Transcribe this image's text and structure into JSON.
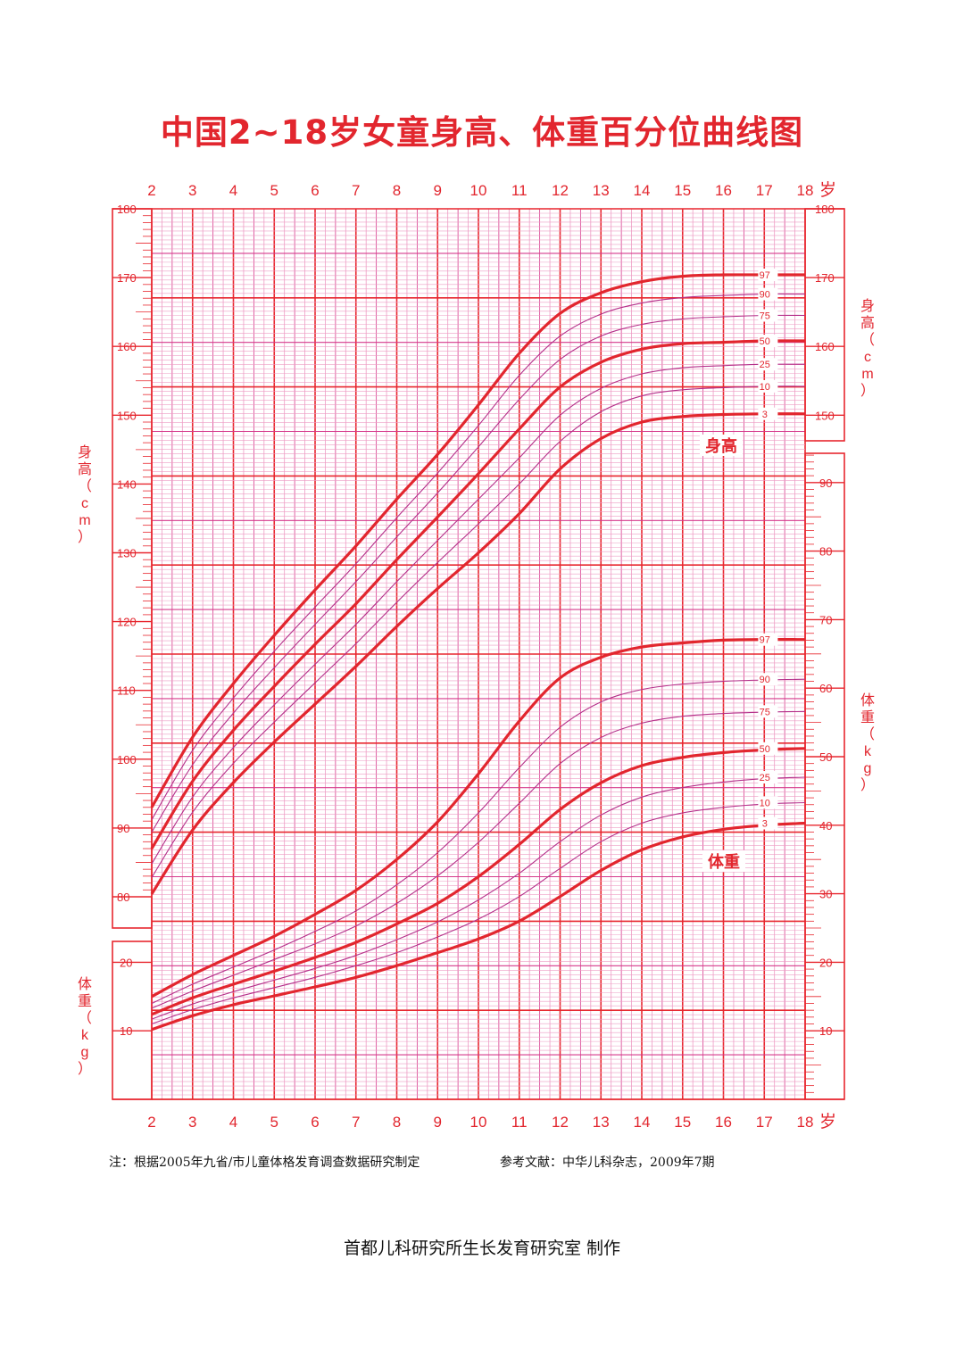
{
  "title": "中国2~18岁女童身高、体重百分位曲线图",
  "note_left": "注：根据2005年九省/市儿童体格发育调查数据研究制定",
  "note_right": "参考文献：中华儿科杂志，2009年7期",
  "footer": "首都儿科研究所生长发育研究室 制作",
  "colors": {
    "primary": "#e2262e",
    "grid": "#d63a8c",
    "grid_minor": "#ee9cc4",
    "frame": "#e8272f"
  },
  "chart_data": {
    "type": "line",
    "x_axis": {
      "unit": "岁",
      "range": [
        2,
        18
      ],
      "ticks": [
        "2",
        "3",
        "4",
        "5",
        "6",
        "7",
        "8",
        "9",
        "10",
        "11",
        "12",
        "13",
        "14",
        "15",
        "16",
        "17",
        "18"
      ]
    },
    "height_axis": {
      "label": "身高（cm）",
      "range": [
        80,
        180
      ],
      "left_ticks": [
        "80",
        "90",
        "100",
        "110",
        "120",
        "130",
        "140",
        "150",
        "160",
        "170",
        "180"
      ],
      "right_ticks": [
        "150",
        "160",
        "170",
        "180"
      ]
    },
    "weight_axis": {
      "label": "体重（kg）",
      "range": [
        0,
        95
      ],
      "left_ticks": [
        "10",
        "20"
      ],
      "right_ticks": [
        "10",
        "20",
        "30",
        "40",
        "50",
        "60",
        "70",
        "80",
        "90"
      ]
    },
    "x": [
      2,
      3,
      4,
      5,
      6,
      7,
      8,
      9,
      10,
      11,
      12,
      13,
      14,
      15,
      16,
      17,
      18
    ],
    "height_label": "身高",
    "weight_label": "体重",
    "height_series": [
      {
        "name": "97",
        "values": [
          93.0,
          103.2,
          111.0,
          118.0,
          124.6,
          131.0,
          137.8,
          144.3,
          151.5,
          159.0,
          164.8,
          167.8,
          169.4,
          170.2,
          170.4,
          170.4,
          170.4
        ]
      },
      {
        "name": "90",
        "values": [
          91.2,
          101.3,
          108.9,
          115.7,
          122.1,
          128.4,
          135.1,
          141.6,
          148.5,
          155.8,
          161.5,
          164.7,
          166.3,
          167.1,
          167.4,
          167.6,
          167.6
        ]
      },
      {
        "name": "75",
        "values": [
          89.4,
          99.2,
          106.7,
          113.3,
          119.6,
          125.8,
          132.3,
          138.7,
          145.4,
          152.3,
          158.1,
          161.5,
          163.2,
          164.0,
          164.3,
          164.5,
          164.5
        ]
      },
      {
        "name": "50",
        "values": [
          87.0,
          96.8,
          104.2,
          110.6,
          116.7,
          122.6,
          129.0,
          135.2,
          141.5,
          148.0,
          154.1,
          157.7,
          159.6,
          160.4,
          160.6,
          160.8,
          160.8
        ]
      },
      {
        "name": "25",
        "values": [
          84.8,
          94.5,
          101.7,
          107.9,
          113.8,
          119.6,
          125.8,
          131.8,
          137.8,
          143.8,
          150.0,
          153.9,
          156.0,
          156.9,
          157.2,
          157.4,
          157.4
        ]
      },
      {
        "name": "10",
        "values": [
          82.8,
          92.3,
          99.4,
          105.4,
          111.1,
          116.8,
          122.8,
          128.6,
          134.2,
          140.0,
          146.2,
          150.5,
          152.8,
          153.7,
          154.0,
          154.2,
          154.2
        ]
      },
      {
        "name": "3",
        "values": [
          80.4,
          89.7,
          96.6,
          102.5,
          108.0,
          113.5,
          119.3,
          124.8,
          130.0,
          135.7,
          142.2,
          146.6,
          149.0,
          149.8,
          150.1,
          150.2,
          150.2
        ]
      }
    ],
    "weight_series": [
      {
        "name": "97",
        "values": [
          15.0,
          18.2,
          21.0,
          23.8,
          27.0,
          30.5,
          35.0,
          40.5,
          47.5,
          55.2,
          61.5,
          64.5,
          66.0,
          66.6,
          67.0,
          67.1,
          67.1
        ]
      },
      {
        "name": "90",
        "values": [
          14.0,
          16.8,
          19.3,
          21.8,
          24.5,
          27.5,
          31.3,
          36.0,
          41.8,
          48.4,
          54.3,
          58.0,
          59.8,
          60.6,
          61.0,
          61.2,
          61.3
        ]
      },
      {
        "name": "75",
        "values": [
          13.3,
          15.8,
          18.1,
          20.4,
          22.7,
          25.3,
          28.6,
          32.6,
          37.5,
          43.2,
          49.0,
          52.8,
          54.9,
          55.9,
          56.3,
          56.5,
          56.6
        ]
      },
      {
        "name": "50",
        "values": [
          12.4,
          14.8,
          16.8,
          18.7,
          20.7,
          22.9,
          25.6,
          28.6,
          32.5,
          37.2,
          42.3,
          46.2,
          48.7,
          49.9,
          50.6,
          51.0,
          51.2
        ]
      },
      {
        "name": "25",
        "values": [
          11.7,
          13.9,
          15.7,
          17.4,
          19.1,
          21.0,
          23.3,
          25.9,
          29.1,
          33.0,
          37.6,
          41.5,
          44.1,
          45.5,
          46.3,
          46.8,
          47.0
        ]
      },
      {
        "name": "10",
        "values": [
          11.0,
          13.1,
          14.8,
          16.3,
          17.8,
          19.5,
          21.4,
          23.7,
          26.3,
          29.6,
          33.7,
          37.6,
          40.3,
          41.8,
          42.6,
          43.1,
          43.3
        ]
      },
      {
        "name": "3",
        "values": [
          10.2,
          12.2,
          13.8,
          15.1,
          16.4,
          17.8,
          19.5,
          21.4,
          23.4,
          26.0,
          29.6,
          33.4,
          36.4,
          38.3,
          39.4,
          40.0,
          40.3
        ]
      }
    ]
  }
}
